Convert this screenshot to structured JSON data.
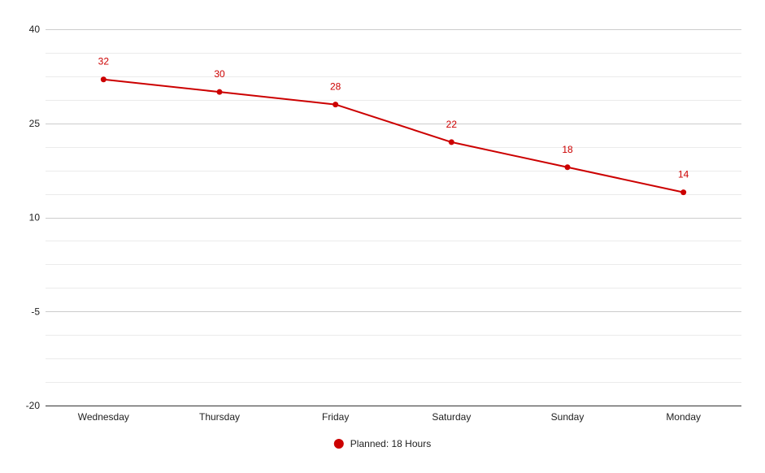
{
  "chart_data": {
    "type": "line",
    "title": "",
    "xlabel": "",
    "ylabel": "",
    "categories": [
      "Wednesday",
      "Thursday",
      "Friday",
      "Saturday",
      "Sunday",
      "Monday"
    ],
    "series": [
      {
        "name": "Planned: 18 Hours",
        "values": [
          32,
          30,
          28,
          22,
          18,
          14
        ],
        "color": "#cc0000"
      }
    ],
    "ylim": [
      -20,
      40
    ],
    "y_ticks": [
      40,
      25,
      10,
      -5,
      -20
    ],
    "y_tick_labels": [
      "40",
      "25",
      "10",
      "-5",
      "-20"
    ],
    "minor_gridlines_per_major": 3,
    "data_labels": true,
    "grid": true,
    "legend_position": "bottom"
  }
}
